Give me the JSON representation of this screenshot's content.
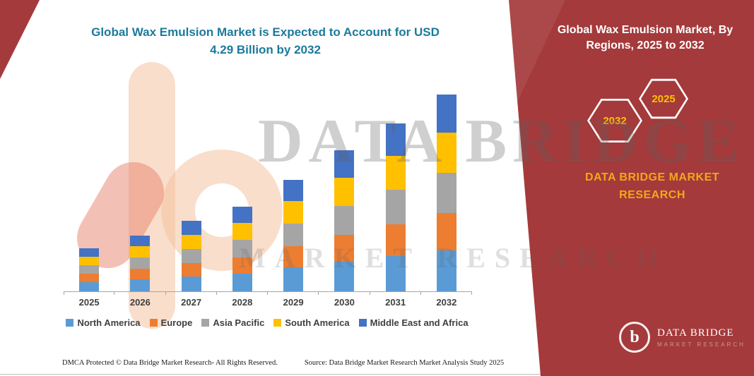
{
  "chart": {
    "title_line1": "Global  Wax Emulsion Market is Expected to Account for USD",
    "title_line2": "4.29 Billion by 2032"
  },
  "chart_data": {
    "type": "bar",
    "stacked": true,
    "title": "Global Wax Emulsion Market is Expected to Account for USD 4.29 Billion by 2032",
    "unit": "USD Billion",
    "categories": [
      "2025",
      "2026",
      "2027",
      "2028",
      "2029",
      "2030",
      "2031",
      "2032"
    ],
    "series": [
      {
        "name": "North America",
        "color": "#5B9BD5",
        "values": [
          0.2,
          0.26,
          0.33,
          0.39,
          0.52,
          0.65,
          0.77,
          0.9
        ]
      },
      {
        "name": "Europe",
        "color": "#ED7D31",
        "values": [
          0.18,
          0.23,
          0.29,
          0.35,
          0.46,
          0.58,
          0.69,
          0.81
        ]
      },
      {
        "name": "Asia Pacific",
        "color": "#A5A5A5",
        "values": [
          0.19,
          0.25,
          0.31,
          0.38,
          0.5,
          0.63,
          0.75,
          0.88
        ]
      },
      {
        "name": "South America",
        "color": "#FFC000",
        "values": [
          0.19,
          0.24,
          0.31,
          0.37,
          0.49,
          0.62,
          0.74,
          0.87
        ]
      },
      {
        "name": "Middle East and Africa",
        "color": "#4472C4",
        "values": [
          0.18,
          0.24,
          0.3,
          0.36,
          0.47,
          0.59,
          0.71,
          0.83
        ]
      }
    ],
    "totals": [
      0.94,
      1.22,
      1.54,
      1.85,
      2.44,
      3.07,
      3.66,
      4.29
    ],
    "ylim": [
      0,
      4.4
    ],
    "grid": false,
    "legend_position": "bottom"
  },
  "watermark": {
    "line1": "DATA BRIDGE",
    "line2": "MARKET RESEARCH"
  },
  "side_panel": {
    "title_line1": "Global  Wax Emulsion Market, By",
    "title_line2": "Regions, 2025 to 2032",
    "hexagons": [
      {
        "label": "2032"
      },
      {
        "label": "2025"
      }
    ],
    "brand_line1": "DATA BRIDGE MARKET",
    "brand_line2": "RESEARCH",
    "logo": {
      "letter": "b",
      "text": "DATA BRIDGE",
      "subtext": "MARKET RESEARCH"
    }
  },
  "footer": {
    "left": "DMCA Protected © Data Bridge Market Research-  All Rights Reserved.",
    "source": "Source: Data Bridge Market Research  Market Analysis Study 2025"
  },
  "colors": {
    "panel_red": "#A43A3B",
    "title_teal": "#1B7A9B",
    "hexagon_year": "#FFC000",
    "brand_gold": "#F2A71B"
  }
}
